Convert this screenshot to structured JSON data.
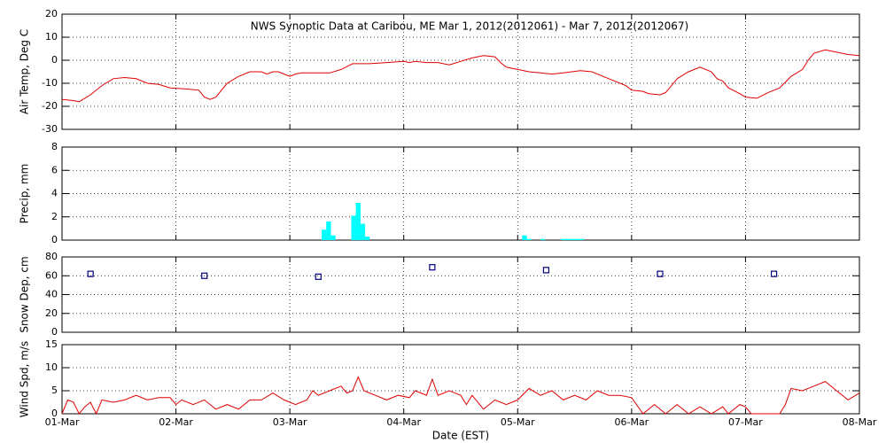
{
  "chart_data": [
    {
      "type": "line",
      "title": "NWS Synoptic Data at Caribou, ME   Mar  1, 2012(2012061) - Mar  7, 2012(2012067)",
      "ylabel": "Air Temp, Deg C",
      "color": "#e00000",
      "xlim": [
        0,
        7
      ],
      "xticks": [
        0,
        1,
        2,
        3,
        4,
        5,
        6,
        7
      ],
      "ylim": [
        -30,
        20
      ],
      "yticks": [
        -30,
        -20,
        -10,
        0,
        10,
        20
      ],
      "grid": true,
      "x": [
        0,
        0.1,
        0.15,
        0.25,
        0.35,
        0.45,
        0.55,
        0.65,
        0.75,
        0.85,
        0.95,
        1.1,
        1.2,
        1.25,
        1.3,
        1.35,
        1.45,
        1.55,
        1.65,
        1.75,
        1.8,
        1.85,
        1.9,
        1.95,
        2.0,
        2.05,
        2.1,
        2.2,
        2.35,
        2.45,
        2.55,
        2.7,
        2.85,
        3.0,
        3.05,
        3.1,
        3.2,
        3.3,
        3.4,
        3.5,
        3.6,
        3.7,
        3.8,
        3.85,
        3.9,
        4.0,
        4.1,
        4.2,
        4.3,
        4.4,
        4.55,
        4.65,
        4.8,
        4.95,
        5.0,
        5.1,
        5.15,
        5.25,
        5.3,
        5.4,
        5.5,
        5.6,
        5.7,
        5.75,
        5.8,
        5.85,
        5.95,
        6.0,
        6.1,
        6.2,
        6.3,
        6.4,
        6.5,
        6.55,
        6.6,
        6.7,
        6.8,
        6.9,
        7.0
      ],
      "values": [
        -17,
        -17.5,
        -18,
        -15,
        -11,
        -8,
        -7.5,
        -8,
        -10,
        -10.5,
        -12,
        -12.5,
        -13,
        -16,
        -17,
        -16,
        -10,
        -7,
        -5,
        -5,
        -6,
        -5,
        -5,
        -6,
        -7,
        -6,
        -5.5,
        -5.5,
        -5.5,
        -4,
        -1.5,
        -1.5,
        -1,
        -0.5,
        -1,
        -0.5,
        -1,
        -1,
        -2,
        -0.5,
        1,
        2,
        1.5,
        -1,
        -3,
        -4,
        -5,
        -5.5,
        -6,
        -5.5,
        -4.5,
        -5,
        -8,
        -11,
        -13,
        -13.5,
        -14.5,
        -15,
        -14,
        -8,
        -5,
        -3,
        -5,
        -8,
        -9,
        -12,
        -14.5,
        -16,
        -16.5,
        -14,
        -12,
        -7,
        -4,
        0,
        3,
        4.5,
        3.5,
        2.5,
        2
      ]
    },
    {
      "type": "bar",
      "ylabel": "Precip, mm",
      "color": "#00ffff",
      "xlim": [
        0,
        7
      ],
      "xticks": [
        0,
        1,
        2,
        3,
        4,
        5,
        6,
        7
      ],
      "ylim": [
        0,
        8
      ],
      "yticks": [
        0,
        2,
        4,
        6,
        8
      ],
      "grid": true,
      "x": [
        2.3,
        2.34,
        2.38,
        2.56,
        2.6,
        2.64,
        2.68,
        4.06,
        4.1,
        4.22,
        4.4,
        4.44,
        4.48,
        4.52,
        4.56
      ],
      "values": [
        0.9,
        1.6,
        0.4,
        2.1,
        3.2,
        1.4,
        0.3,
        0.4,
        0.1,
        0.1,
        0.1,
        0.1,
        0.1,
        0.1,
        0.1
      ]
    },
    {
      "type": "scatter",
      "ylabel": "Snow Dep, cm",
      "color": "#000080",
      "xlim": [
        0,
        7
      ],
      "xticks": [
        0,
        1,
        2,
        3,
        4,
        5,
        6,
        7
      ],
      "ylim": [
        0,
        80
      ],
      "yticks": [
        0,
        20,
        40,
        60,
        80
      ],
      "grid": true,
      "x": [
        0.25,
        1.25,
        2.25,
        3.25,
        4.25,
        5.25,
        6.25
      ],
      "values": [
        62,
        60,
        59,
        69,
        66,
        62,
        62
      ]
    },
    {
      "type": "line",
      "ylabel": "Wind Spd, m/s",
      "xlabel": "Date (EST)",
      "color": "#e00000",
      "xlim": [
        0,
        7
      ],
      "xticks": [
        {
          "value": 0,
          "label": "01-Mar"
        },
        {
          "value": 1,
          "label": "02-Mar"
        },
        {
          "value": 2,
          "label": "03-Mar"
        },
        {
          "value": 3,
          "label": "04-Mar"
        },
        {
          "value": 4,
          "label": "05-Mar"
        },
        {
          "value": 5,
          "label": "06-Mar"
        },
        {
          "value": 6,
          "label": "07-Mar"
        },
        {
          "value": 7,
          "label": "08-Mar"
        }
      ],
      "ylim": [
        0,
        15
      ],
      "yticks": [
        0,
        5,
        10,
        15
      ],
      "grid": true,
      "x": [
        0,
        0.05,
        0.1,
        0.15,
        0.2,
        0.25,
        0.3,
        0.35,
        0.45,
        0.55,
        0.65,
        0.75,
        0.85,
        0.95,
        1.0,
        1.05,
        1.15,
        1.25,
        1.35,
        1.45,
        1.55,
        1.65,
        1.75,
        1.85,
        1.95,
        2.05,
        2.15,
        2.2,
        2.25,
        2.35,
        2.45,
        2.5,
        2.55,
        2.6,
        2.65,
        2.75,
        2.85,
        2.95,
        3.05,
        3.1,
        3.2,
        3.25,
        3.3,
        3.4,
        3.5,
        3.55,
        3.6,
        3.7,
        3.8,
        3.9,
        4.0,
        4.1,
        4.2,
        4.3,
        4.4,
        4.5,
        4.6,
        4.7,
        4.8,
        4.9,
        5.0,
        5.1,
        5.2,
        5.3,
        5.4,
        5.5,
        5.6,
        5.7,
        5.8,
        5.85,
        5.95,
        6.0,
        6.05,
        6.3,
        6.35,
        6.4,
        6.5,
        6.6,
        6.7,
        6.8,
        6.9,
        7.0
      ],
      "values": [
        0,
        3,
        2.5,
        0,
        1.5,
        2.5,
        0,
        3,
        2.5,
        3,
        4,
        3,
        3.5,
        3.5,
        2,
        3,
        2,
        3,
        1,
        2,
        1,
        3,
        3,
        4.5,
        3,
        2,
        3,
        5,
        4,
        5,
        6,
        4.5,
        5,
        8,
        5,
        4,
        3,
        4,
        3.5,
        5,
        4,
        7.5,
        4,
        5,
        4,
        2,
        4,
        1,
        3,
        2,
        3,
        5.5,
        4,
        5,
        3,
        4,
        3,
        5,
        4,
        4,
        3.5,
        0,
        2,
        0,
        2,
        0,
        1.5,
        0,
        1.5,
        0,
        2,
        1.5,
        0,
        0,
        2,
        5.5,
        5,
        6,
        7,
        5,
        3,
        4.5
      ]
    }
  ]
}
